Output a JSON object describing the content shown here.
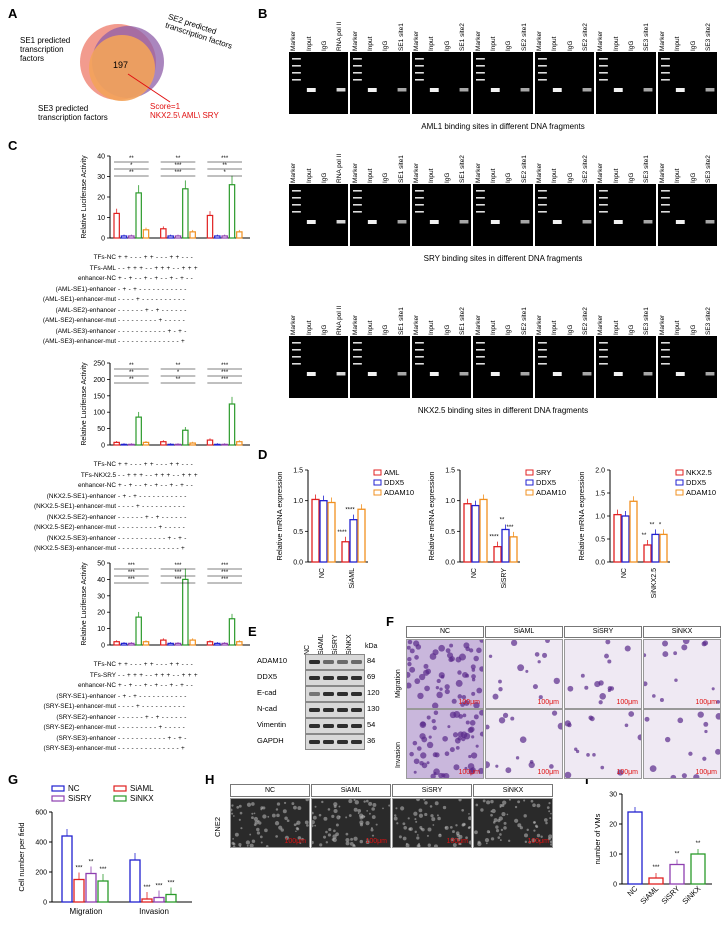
{
  "panels": {
    "A": "A",
    "B": "B",
    "C": "C",
    "D": "D",
    "E": "E",
    "F": "F",
    "G": "G",
    "H": "H",
    "I": "I"
  },
  "venn": {
    "se1": "SE1 predicted transcription factors",
    "se2": "SE2 predicted transcription factors",
    "se3": "SE3 predicted transcription factors",
    "center": "197",
    "score": "Score=1",
    "genes": "NKX2.5\\ AML\\ SRY",
    "colors": {
      "se1": "#f08a7a",
      "se2": "#8e5ea8",
      "se3": "#f3a35a",
      "score": "#e01010"
    }
  },
  "gels": {
    "lanes_ab": [
      "Marker",
      "Input",
      "IgG",
      "RNA pol II",
      "Marker",
      "Input",
      "IgG",
      "SE1 site1",
      "Marker",
      "Input",
      "IgG",
      "SE1 site2",
      "Marker",
      "Input",
      "IgG",
      "SE2 site1",
      "Marker",
      "Input",
      "IgG",
      "SE2 site2",
      "Marker",
      "Input",
      "IgG",
      "SE3 site1",
      "Marker",
      "Input",
      "IgG",
      "SE3 site2"
    ],
    "caption_aml": "AML1 binding sites in different DNA fragments",
    "caption_sry": "SRY binding sites in different DNA fragments",
    "caption_nkx": "NKX2.5 binding sites in different DNA fragments"
  },
  "luciferase": {
    "ylabel": "Relative Luciferase Activity",
    "colors": [
      "#e02020",
      "#2020d0",
      "#8e3fb0",
      "#2a9a2a",
      "#f09020"
    ],
    "chart_data": [
      {
        "type": "bar",
        "ylabel": "Relative Luciferase Activity",
        "ylim": [
          0,
          40
        ],
        "yticks": [
          0,
          10,
          20,
          30,
          40
        ],
        "groups": [
          "AML-SE1",
          "AML-SE2",
          "AML-SE3"
        ],
        "values": [
          [
            12,
            1,
            1,
            22,
            4
          ],
          [
            4.5,
            1,
            1,
            24,
            3
          ],
          [
            11,
            1,
            1,
            26,
            3
          ]
        ],
        "significance": [
          "**",
          "*",
          "**",
          "**",
          "**",
          "***",
          "***",
          "***",
          "***",
          "**",
          "*",
          "**",
          "**"
        ]
      },
      {
        "type": "bar",
        "ylabel": "Relative Luciferase Activity",
        "ylim": [
          0,
          250
        ],
        "yticks": [
          0,
          50,
          100,
          150,
          200,
          250
        ],
        "groups": [
          "NKX2.5-SE1",
          "NKX2.5-SE2",
          "NKX2.5-SE3"
        ],
        "values": [
          [
            8,
            2,
            2,
            85,
            8
          ],
          [
            10,
            2,
            2,
            45,
            6
          ],
          [
            15,
            2,
            2,
            125,
            10
          ]
        ],
        "significance": [
          "**",
          "**",
          "**",
          "**",
          "**",
          "*",
          "**",
          "*",
          "***",
          "***",
          "***",
          "***"
        ]
      },
      {
        "type": "bar",
        "ylabel": "Relative Luciferase Activity",
        "ylim": [
          0,
          50
        ],
        "yticks": [
          0,
          10,
          20,
          30,
          40,
          50
        ],
        "groups": [
          "SRY-SE1",
          "SRY-SE2",
          "SRY-SE3"
        ],
        "values": [
          [
            2,
            1,
            1,
            17,
            2
          ],
          [
            3,
            1,
            1,
            40,
            3
          ],
          [
            2,
            1,
            1,
            16,
            2
          ]
        ],
        "significance": [
          "***",
          "***",
          "***",
          "***",
          "***",
          "***",
          "***",
          "***",
          "***",
          "***",
          "***",
          "***"
        ]
      }
    ],
    "design_aml": {
      "rows": [
        "TFs-NC",
        "TFs-AML",
        "enhancer-NC",
        "(AML-SE1)-enhancer",
        "(AML-SE1)-enhancer-mut",
        "(AML-SE2)-enhancer",
        "(AML-SE2)-enhancer-mut",
        "(AML-SE3)-enhancer",
        "(AML-SE3)-enhancer-mut"
      ],
      "symbols": [
        "+ + - - -   + + - - -   + + - - -",
        "- - + + +   - - + + +   - - + + +",
        "+ - + - -   + - + - -   + - + - -",
        "- + - + -   - - - - -   - - - - -",
        "- - - - +   - - - - -   - - - - -",
        "- - - - -   - + - + -   - - - - -",
        "- - - - -   - - - - +   - - - - -",
        "- - - - -   - - - - -   - + - + -",
        "- - - - -   - - - - -   - - - - +"
      ]
    },
    "design_nkx": {
      "rows": [
        "TFs-NC",
        "TFs-NKX2.5",
        "enhancer-NC",
        "(NKX2.5-SE1)-enhancer",
        "(NKX2.5-SE1)-enhancer-mut",
        "(NKX2.5-SE2)-enhancer",
        "(NKX2.5-SE2)-enhancer-mut",
        "(NKX2.5-SE3)-enhancer",
        "(NKX2.5-SE3)-enhancer-mut"
      ],
      "symbols": [
        "+ + - - -   + + - - -   + + - - -",
        "- - + + +   - - + + +   - - + + +",
        "+ - + - -   + - + - -   + - + - -",
        "- + - + -   - - - - -   - - - - -",
        "- - - - +   - - - - -   - - - - -",
        "- - - - -   - + - + -   - - - - -",
        "- - - - -   - - - - +   - - - - -",
        "- - - - -   - - - - -   - + - + -",
        "- - - - -   - - - - -   - - - - +"
      ]
    },
    "design_sry": {
      "rows": [
        "TFs-NC",
        "TFs-SRY",
        "enhancer-NC",
        "(SRY-SE1)-enhancer",
        "(SRY-SE1)-enhancer-mut",
        "(SRY-SE2)-enhancer",
        "(SRY-SE2)-enhancer-mut",
        "(SRY-SE3)-enhancer",
        "(SRY-SE3)-enhancer-mut"
      ],
      "symbols": [
        "+ + - - -   + + - - -   + + - - -",
        "- - + + +   - - + + +   - - + + +",
        "+ - + - -   + - + - -   + - + - -",
        "- + - + -   - - - - -   - - - - -",
        "- - - - +   - - - - -   - - - - -",
        "- - - - -   - + - + -   - - - - -",
        "- - - - -   - - - - +   - - - - -",
        "- - - - -   - - - - -   - + - + -",
        "- - - - -   - - - - -   - - - - +"
      ]
    }
  },
  "mrna": {
    "chart_data": [
      {
        "type": "bar",
        "ylabel": "Relative mRNA expression",
        "ylim": [
          0,
          1.5
        ],
        "yticks": [
          "0.0",
          "0.5",
          "1.0",
          "1.5"
        ],
        "categories": [
          "NC",
          "SiAML"
        ],
        "legend": [
          "AML",
          "DDX5",
          "ADAM10"
        ],
        "values": [
          [
            1.02,
            1.0,
            0.97
          ],
          [
            0.33,
            0.69,
            0.86
          ]
        ],
        "significance": [
          "****",
          "****"
        ]
      },
      {
        "type": "bar",
        "ylabel": "Relative mRNA expression",
        "ylim": [
          0,
          1.5
        ],
        "yticks": [
          "0.0",
          "0.5",
          "1.0",
          "1.5"
        ],
        "categories": [
          "NC",
          "SiSRY"
        ],
        "legend": [
          "SRY",
          "DDX5",
          "ADAM10"
        ],
        "values": [
          [
            0.95,
            0.92,
            1.02
          ],
          [
            0.25,
            0.53,
            0.41
          ]
        ],
        "significance": [
          "****",
          "**",
          "***"
        ]
      },
      {
        "type": "bar",
        "ylabel": "Relative mRNA expression",
        "ylim": [
          0,
          2.0
        ],
        "yticks": [
          "0.0",
          "0.5",
          "1.0",
          "1.5",
          "2.0"
        ],
        "categories": [
          "NC",
          "SiNKX2.5"
        ],
        "legend": [
          "NKX2.5",
          "DDX5",
          "ADAM10"
        ],
        "values": [
          [
            1.03,
            1.0,
            1.32
          ],
          [
            0.37,
            0.6,
            0.6
          ]
        ],
        "significance": [
          "**",
          "**",
          "*"
        ]
      }
    ],
    "colors": [
      "#e02020",
      "#2020d0",
      "#f09020"
    ]
  },
  "western": {
    "lanes": [
      "NC",
      "SiAML",
      "SiSRY",
      "SiNKX"
    ],
    "kda": "kDa",
    "rows": [
      {
        "name": "ADAM10",
        "kda": "84"
      },
      {
        "name": "DDX5",
        "kda": "69"
      },
      {
        "name": "E-cad",
        "kda": "120"
      },
      {
        "name": "N-cad",
        "kda": "130"
      },
      {
        "name": "Vimentin",
        "kda": "54"
      },
      {
        "name": "GAPDH",
        "kda": "36"
      }
    ]
  },
  "transwell": {
    "cols": [
      "NC",
      "SiAML",
      "SiSRY",
      "SiNKX"
    ],
    "rows": [
      "Migration",
      "Invasion"
    ],
    "scale": "100μm"
  },
  "cellcount": {
    "chart_data": {
      "type": "bar",
      "ylabel": "Cell number per field",
      "ylim": [
        0,
        600
      ],
      "yticks": [
        0,
        200,
        400,
        600
      ],
      "categories": [
        "Migration",
        "Invasion"
      ],
      "legend": [
        "NC",
        "SiAML",
        "SiSRY",
        "SiNKX"
      ],
      "values": [
        [
          440,
          150,
          190,
          140
        ],
        [
          280,
          20,
          30,
          50
        ]
      ],
      "significance": [
        "***",
        "**",
        "***",
        "***",
        "***",
        "***"
      ]
    },
    "colors": [
      "#2020d0",
      "#e02020",
      "#8e3fb0",
      "#2a9a2a"
    ]
  },
  "vm": {
    "cols": [
      "NC",
      "SiAML",
      "SiSRY",
      "SiNKX"
    ],
    "rowlabel": "CNE2",
    "scale": "100μm"
  },
  "vmcount": {
    "chart_data": {
      "type": "bar",
      "ylabel": "number of VMs",
      "ylim": [
        0,
        30
      ],
      "yticks": [
        0,
        10,
        20,
        30
      ],
      "categories": [
        "NC",
        "SiAML",
        "SiSRY",
        "SiNKX"
      ],
      "values": [
        24,
        2,
        6.5,
        10
      ],
      "significance": [
        "***",
        "**",
        "**"
      ]
    },
    "colors": [
      "#2020d0",
      "#e02020",
      "#8e3fb0",
      "#2a9a2a"
    ]
  }
}
